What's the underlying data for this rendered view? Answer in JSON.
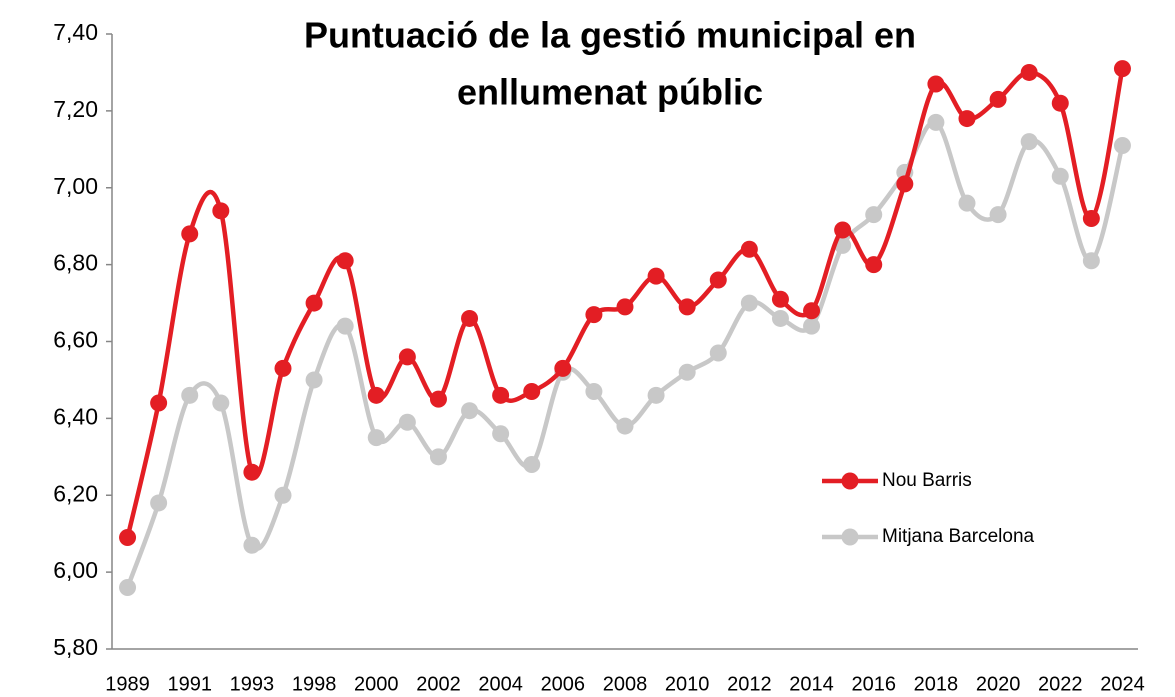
{
  "chart_data": {
    "type": "line",
    "title": [
      "Puntuació de la gestió municipal en",
      "enllumenat públic"
    ],
    "categories": [
      "1989",
      null,
      "1991",
      null,
      "1993",
      null,
      "1998",
      null,
      "2000",
      null,
      "2002",
      null,
      "2004",
      null,
      "2006",
      null,
      "2008",
      null,
      "2010",
      null,
      "2012",
      null,
      "2014",
      null,
      "2016",
      null,
      "2018",
      null,
      "2020",
      null,
      "2022",
      null,
      "2024"
    ],
    "series": [
      {
        "name": "Nou Barris",
        "color": "#e31e24",
        "values": [
          6.09,
          6.44,
          6.88,
          6.94,
          6.26,
          6.53,
          6.7,
          6.81,
          6.46,
          6.56,
          6.45,
          6.66,
          6.46,
          6.47,
          6.53,
          6.67,
          6.69,
          6.77,
          6.69,
          6.76,
          6.84,
          6.71,
          6.68,
          6.89,
          6.8,
          7.01,
          7.27,
          7.18,
          7.23,
          7.3,
          7.22,
          6.92,
          7.31
        ]
      },
      {
        "name": "Mitjana Barcelona",
        "color": "#c8c8c8",
        "values": [
          5.96,
          6.18,
          6.46,
          6.44,
          6.07,
          6.2,
          6.5,
          6.64,
          6.35,
          6.39,
          6.3,
          6.42,
          6.36,
          6.28,
          6.52,
          6.47,
          6.38,
          6.46,
          6.52,
          6.57,
          6.7,
          6.66,
          6.64,
          6.85,
          6.93,
          7.04,
          7.17,
          6.96,
          6.93,
          7.12,
          7.03,
          6.81,
          7.11
        ]
      }
    ],
    "ylim": [
      5.8,
      7.4
    ],
    "yticks": [
      {
        "value": 5.8,
        "label": "5,80"
      },
      {
        "value": 6.0,
        "label": "6,00"
      },
      {
        "value": 6.2,
        "label": "6,20"
      },
      {
        "value": 6.4,
        "label": "6,40"
      },
      {
        "value": 6.6,
        "label": "6,60"
      },
      {
        "value": 6.8,
        "label": "6,80"
      },
      {
        "value": 7.0,
        "label": "7,00"
      },
      {
        "value": 7.2,
        "label": "7,20"
      },
      {
        "value": 7.4,
        "label": "7,40"
      }
    ],
    "grid": false,
    "smooth": true,
    "legend": "right"
  }
}
